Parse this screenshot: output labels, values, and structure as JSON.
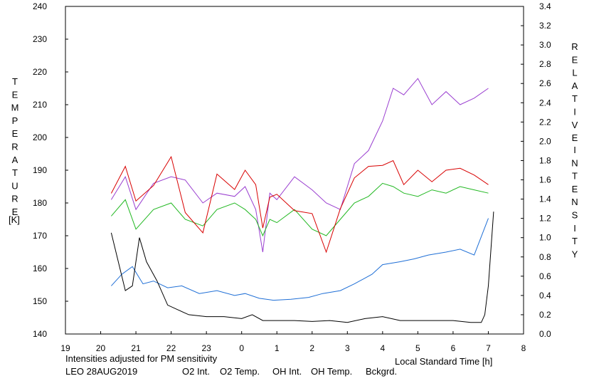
{
  "chart_data": {
    "type": "line",
    "xlabel": "Local Standard Time [h]",
    "ylabel_left_letters": [
      "T",
      "E",
      "M",
      "P",
      "E",
      "R",
      "A",
      "T",
      "U",
      "R",
      "E"
    ],
    "ylabel_left_unit": "[K]",
    "ylabel_right_letters_1": [
      "R",
      "E",
      "L",
      "A",
      "T",
      "I",
      "V",
      "E"
    ],
    "ylabel_right_letters_2": [
      "I",
      "N",
      "T",
      "E",
      "N",
      "S",
      "I",
      "T",
      "Y"
    ],
    "x_ticks": [
      "19",
      "20",
      "21",
      "22",
      "23",
      "0",
      "1",
      "2",
      "3",
      "4",
      "5",
      "6",
      "7",
      "8"
    ],
    "xlim": [
      19,
      32
    ],
    "ylim_left": [
      140,
      240
    ],
    "ylim_right": [
      0.0,
      3.4
    ],
    "y_left_ticks": [
      140,
      150,
      160,
      170,
      180,
      190,
      200,
      210,
      220,
      230,
      240
    ],
    "y_right_ticks": [
      "0.0",
      "0.2",
      "0.4",
      "0.6",
      "0.8",
      "1.0",
      "1.2",
      "1.4",
      "1.6",
      "1.8",
      "2.0",
      "2.2",
      "2.4",
      "2.6",
      "2.8",
      "3.0",
      "3.2",
      "3.4"
    ],
    "note": "Intensities adjusted for PM sensitivity",
    "station": "LEO 28AUG2019",
    "legend": [
      {
        "label": "O2 Int.",
        "color": "#1f6fd6"
      },
      {
        "label": "O2 Temp.",
        "color": "#9a3fd0"
      },
      {
        "label": "OH Int.",
        "color": "#d80000"
      },
      {
        "label": "OH Temp.",
        "color": "#22b822"
      },
      {
        "label": "Bckgrd.",
        "color": "#000000"
      }
    ],
    "note_color": "#22b822",
    "series": [
      {
        "name": "O2 Temp.",
        "axis": "left",
        "color": "#9a3fd0",
        "x": [
          20.3,
          20.7,
          21.0,
          21.5,
          22.0,
          22.4,
          22.9,
          23.3,
          23.8,
          24.1,
          24.4,
          24.6,
          24.8,
          25.0,
          25.5,
          26.0,
          26.4,
          26.8,
          27.2,
          27.6,
          28.0,
          28.3,
          28.6,
          29.0,
          29.4,
          29.8,
          30.2,
          30.6,
          31.0
        ],
        "y": [
          181,
          188,
          178,
          186,
          188,
          187,
          180,
          183,
          182,
          185,
          178,
          165,
          183,
          181,
          188,
          184,
          180,
          178,
          192,
          196,
          205,
          215,
          213,
          218,
          210,
          214,
          210,
          212,
          215
        ]
      },
      {
        "name": "OH Temp.",
        "axis": "left",
        "color": "#22b822",
        "x": [
          20.3,
          20.7,
          21.0,
          21.5,
          22.0,
          22.4,
          22.9,
          23.3,
          23.8,
          24.1,
          24.4,
          24.6,
          24.8,
          25.0,
          25.5,
          26.0,
          26.4,
          26.8,
          27.2,
          27.6,
          28.0,
          28.3,
          28.6,
          29.0,
          29.4,
          29.8,
          30.2,
          30.6,
          31.0
        ],
        "y": [
          176,
          181,
          172,
          178,
          180,
          175,
          173,
          178,
          180,
          178,
          175,
          170,
          175,
          174,
          178,
          172,
          170,
          175,
          180,
          182,
          186,
          185,
          183,
          182,
          184,
          183,
          185,
          184,
          183
        ]
      },
      {
        "name": "OH Int.",
        "axis": "right",
        "color": "#d80000",
        "x": [
          20.3,
          20.7,
          21.0,
          21.5,
          22.0,
          22.4,
          22.9,
          23.3,
          23.8,
          24.1,
          24.4,
          24.6,
          24.8,
          25.0,
          25.5,
          26.0,
          26.4,
          26.8,
          27.2,
          27.6,
          28.0,
          28.3,
          28.6,
          29.0,
          29.4,
          29.8,
          30.2,
          30.6,
          31.0
        ],
        "y": [
          1.46,
          1.74,
          1.38,
          1.54,
          1.84,
          1.26,
          1.05,
          1.66,
          1.5,
          1.7,
          1.55,
          1.1,
          1.42,
          1.45,
          1.28,
          1.25,
          0.85,
          1.3,
          1.62,
          1.74,
          1.75,
          1.8,
          1.55,
          1.7,
          1.58,
          1.7,
          1.72,
          1.65,
          1.55
        ]
      },
      {
        "name": "O2 Int.",
        "axis": "right",
        "color": "#1f6fd6",
        "x": [
          20.3,
          20.6,
          20.9,
          21.2,
          21.5,
          21.9,
          22.3,
          22.8,
          23.3,
          23.8,
          24.1,
          24.5,
          24.9,
          25.4,
          25.9,
          26.3,
          26.8,
          27.2,
          27.7,
          28.0,
          28.5,
          28.9,
          29.3,
          29.8,
          30.2,
          30.6,
          31.0
        ],
        "y": [
          0.5,
          0.62,
          0.7,
          0.52,
          0.55,
          0.48,
          0.5,
          0.42,
          0.45,
          0.4,
          0.42,
          0.37,
          0.35,
          0.36,
          0.38,
          0.42,
          0.45,
          0.52,
          0.62,
          0.72,
          0.75,
          0.78,
          0.82,
          0.85,
          0.88,
          0.82,
          1.2
        ]
      },
      {
        "name": "Bckgrd.",
        "axis": "right",
        "color": "#000000",
        "x": [
          20.3,
          20.5,
          20.7,
          20.9,
          21.1,
          21.3,
          21.6,
          21.9,
          22.2,
          22.5,
          23.0,
          23.5,
          24.0,
          24.3,
          24.6,
          25.0,
          25.5,
          26.0,
          26.5,
          27.0,
          27.5,
          28.0,
          28.5,
          29.0,
          29.5,
          30.0,
          30.5,
          30.8,
          30.9,
          31.0,
          31.15
        ],
        "y": [
          1.05,
          0.75,
          0.45,
          0.5,
          1.0,
          0.75,
          0.55,
          0.3,
          0.25,
          0.2,
          0.18,
          0.18,
          0.16,
          0.2,
          0.14,
          0.14,
          0.14,
          0.13,
          0.14,
          0.12,
          0.16,
          0.18,
          0.14,
          0.14,
          0.14,
          0.14,
          0.12,
          0.12,
          0.2,
          0.5,
          1.27
        ]
      }
    ]
  }
}
